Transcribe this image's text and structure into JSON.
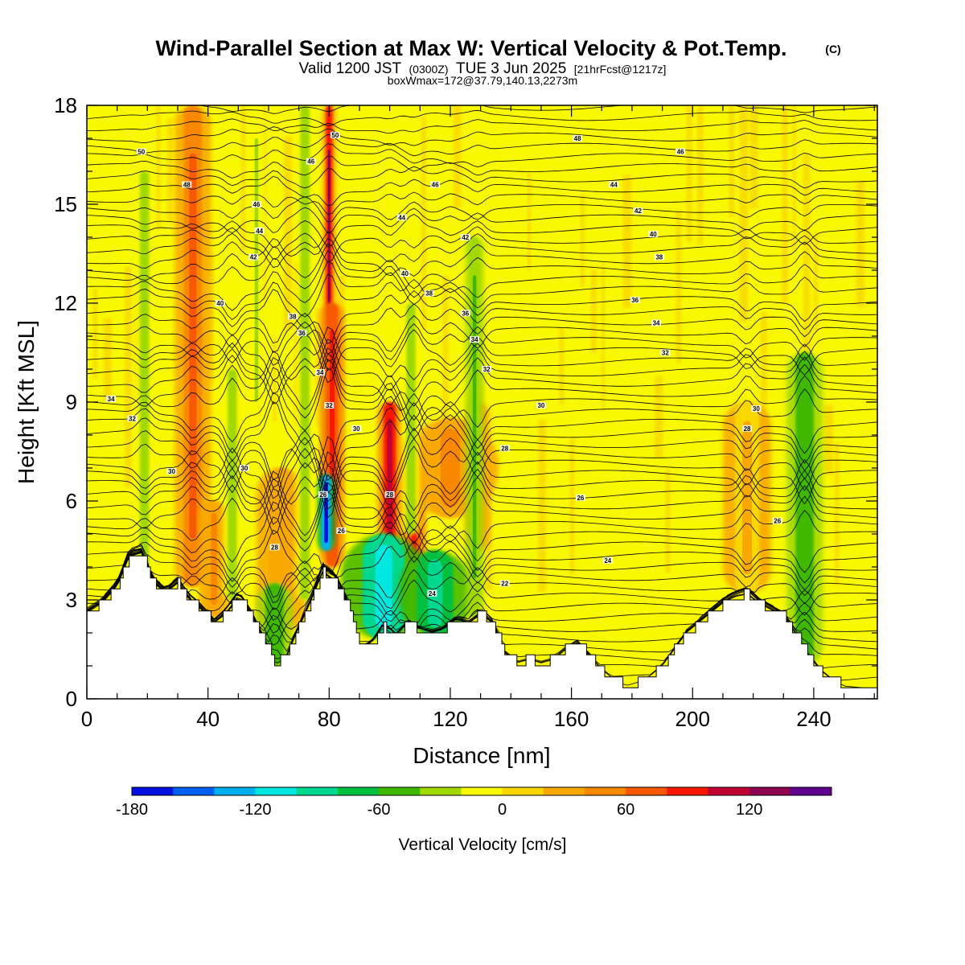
{
  "header": {
    "title": "Wind-Parallel Section at Max W: Vertical Velocity & Pot.Temp.",
    "title_mark": "(C)",
    "valid_prefix": "Valid 1200 JST",
    "valid_utc": "(0300Z)",
    "valid_date": "TUE 3 Jun 2025",
    "valid_fcst": "[21hrFcst@1217z]",
    "box_info": "boxWmax=172@37.79,140.13,2273m"
  },
  "chart_data": {
    "type": "heatmap",
    "xlabel": "Distance [nm]",
    "ylabel": "Height [Kft MSL]",
    "xlim": [
      0,
      261
    ],
    "ylim": [
      0,
      18
    ],
    "x_ticks": [
      0,
      40,
      80,
      120,
      160,
      200,
      240
    ],
    "y_ticks": [
      0,
      3,
      6,
      9,
      12,
      15,
      18
    ],
    "colorbar": {
      "label": "Vertical Velocity [cm/s]",
      "ticks": [
        -180,
        -120,
        -60,
        0,
        60,
        120
      ],
      "bins": [
        -180,
        -160,
        -140,
        -120,
        -100,
        -80,
        -60,
        -40,
        -20,
        0,
        20,
        40,
        60,
        80,
        100,
        120,
        140,
        160
      ],
      "colors": [
        "#0010e0",
        "#0060f0",
        "#00b0f0",
        "#00e8e0",
        "#00d890",
        "#00c040",
        "#40b800",
        "#a0d800",
        "#f8f800",
        "#f8d800",
        "#f8a800",
        "#f88800",
        "#f85800",
        "#f81800",
        "#c00030",
        "#900050",
        "#600090"
      ]
    },
    "terrain_kft": [
      [
        0,
        2.6
      ],
      [
        5,
        2.9
      ],
      [
        10,
        3.4
      ],
      [
        14,
        4.3
      ],
      [
        18,
        4.4
      ],
      [
        22,
        3.5
      ],
      [
        26,
        3.2
      ],
      [
        30,
        3.5
      ],
      [
        34,
        3.0
      ],
      [
        38,
        2.7
      ],
      [
        42,
        2.3
      ],
      [
        46,
        2.6
      ],
      [
        50,
        3.1
      ],
      [
        54,
        2.6
      ],
      [
        58,
        1.9
      ],
      [
        62,
        1.1
      ],
      [
        66,
        1.3
      ],
      [
        70,
        2.2
      ],
      [
        74,
        3.0
      ],
      [
        78,
        3.9
      ],
      [
        82,
        3.6
      ],
      [
        86,
        2.9
      ],
      [
        90,
        1.5
      ],
      [
        94,
        1.7
      ],
      [
        98,
        2.2
      ],
      [
        102,
        1.9
      ],
      [
        106,
        2.3
      ],
      [
        110,
        2.1
      ],
      [
        114,
        2.0
      ],
      [
        118,
        2.1
      ],
      [
        122,
        2.4
      ],
      [
        126,
        2.3
      ],
      [
        130,
        2.6
      ],
      [
        134,
        2.3
      ],
      [
        138,
        1.4
      ],
      [
        142,
        1.1
      ],
      [
        146,
        1.2
      ],
      [
        150,
        1.1
      ],
      [
        154,
        1.2
      ],
      [
        158,
        1.5
      ],
      [
        162,
        1.7
      ],
      [
        166,
        1.3
      ],
      [
        170,
        0.9
      ],
      [
        174,
        0.6
      ],
      [
        178,
        0.4
      ],
      [
        182,
        0.5
      ],
      [
        186,
        0.7
      ],
      [
        190,
        1.0
      ],
      [
        194,
        1.5
      ],
      [
        198,
        2.0
      ],
      [
        202,
        2.3
      ],
      [
        206,
        2.6
      ],
      [
        210,
        2.9
      ],
      [
        214,
        3.1
      ],
      [
        218,
        3.2
      ],
      [
        222,
        2.9
      ],
      [
        226,
        2.7
      ],
      [
        230,
        2.5
      ],
      [
        234,
        2.0
      ],
      [
        238,
        1.4
      ],
      [
        242,
        0.9
      ],
      [
        246,
        0.6
      ],
      [
        250,
        0.4
      ],
      [
        261,
        0.3
      ]
    ],
    "updrafts": [
      {
        "x": 35,
        "w": 6,
        "z0": 3.4,
        "z1": 18,
        "v": 60
      },
      {
        "x": 42,
        "w": 5,
        "z0": 2.5,
        "z1": 6,
        "v": 50
      },
      {
        "x": 64,
        "w": 8,
        "z0": 2.0,
        "z1": 7,
        "v": 30
      },
      {
        "x": 80,
        "w": 2,
        "z0": 4.5,
        "z1": 18,
        "v": 130
      },
      {
        "x": 81,
        "w": 4,
        "z0": 4.0,
        "z1": 12,
        "v": 90
      },
      {
        "x": 100,
        "w": 4,
        "z0": 4.0,
        "z1": 9,
        "v": 110
      },
      {
        "x": 108,
        "w": 4,
        "z0": 4.0,
        "z1": 8,
        "v": 95
      },
      {
        "x": 120,
        "w": 16,
        "z0": 5.5,
        "z1": 8.5,
        "v": 45
      },
      {
        "x": 129,
        "w": 4,
        "z0": 4.5,
        "z1": 9,
        "v": 40
      },
      {
        "x": 218,
        "w": 8,
        "z0": 3.2,
        "z1": 9,
        "v": 25
      }
    ],
    "downdrafts": [
      {
        "x": 79,
        "w": 3,
        "z0": 4.5,
        "z1": 6.8,
        "v": -175
      },
      {
        "x": 98,
        "w": 14,
        "z0": 1.8,
        "z1": 5.0,
        "v": -110
      },
      {
        "x": 115,
        "w": 12,
        "z0": 1.9,
        "z1": 4.5,
        "v": -95
      },
      {
        "x": 62,
        "w": 6,
        "z0": 1.0,
        "z1": 3.5,
        "v": -60
      },
      {
        "x": 237,
        "w": 6,
        "z0": 1.0,
        "z1": 10.5,
        "v": -55
      },
      {
        "x": 128,
        "w": 3,
        "z0": 2.5,
        "z1": 14,
        "v": -45
      },
      {
        "x": 107,
        "w": 3,
        "z0": 5,
        "z1": 12,
        "v": -40
      },
      {
        "x": 72,
        "w": 3,
        "z0": 3,
        "z1": 18,
        "v": -35
      },
      {
        "x": 48,
        "w": 3,
        "z0": 3,
        "z1": 10,
        "v": -35
      },
      {
        "x": 19,
        "w": 3,
        "z0": 4,
        "z1": 16,
        "v": -30
      },
      {
        "x": 56,
        "w": 3,
        "z0": 8,
        "z1": 18,
        "v": -25
      }
    ],
    "theta_labels": [
      {
        "x": 18,
        "z": 16.6,
        "text": "50"
      },
      {
        "x": 33,
        "z": 15.6,
        "text": "48"
      },
      {
        "x": 56,
        "z": 15.0,
        "text": "46"
      },
      {
        "x": 57,
        "z": 14.2,
        "text": "44"
      },
      {
        "x": 55,
        "z": 13.4,
        "text": "42"
      },
      {
        "x": 44,
        "z": 12.0,
        "text": "40"
      },
      {
        "x": 68,
        "z": 11.6,
        "text": "38"
      },
      {
        "x": 71,
        "z": 11.1,
        "text": "36"
      },
      {
        "x": 77,
        "z": 9.9,
        "text": "34"
      },
      {
        "x": 80,
        "z": 8.9,
        "text": "32"
      },
      {
        "x": 89,
        "z": 8.2,
        "text": "30"
      },
      {
        "x": 8,
        "z": 9.1,
        "text": "34"
      },
      {
        "x": 15,
        "z": 8.5,
        "text": "32"
      },
      {
        "x": 28,
        "z": 6.9,
        "text": "30"
      },
      {
        "x": 52,
        "z": 7.0,
        "text": "30"
      },
      {
        "x": 62,
        "z": 4.6,
        "text": "28"
      },
      {
        "x": 78,
        "z": 6.2,
        "text": "26"
      },
      {
        "x": 84,
        "z": 5.1,
        "text": "26"
      },
      {
        "x": 100,
        "z": 6.2,
        "text": "28"
      },
      {
        "x": 82,
        "z": 17.1,
        "text": "50"
      },
      {
        "x": 74,
        "z": 16.3,
        "text": "46"
      },
      {
        "x": 115,
        "z": 15.6,
        "text": "46"
      },
      {
        "x": 104,
        "z": 14.6,
        "text": "44"
      },
      {
        "x": 125,
        "z": 14.0,
        "text": "42"
      },
      {
        "x": 105,
        "z": 12.9,
        "text": "40"
      },
      {
        "x": 113,
        "z": 12.3,
        "text": "38"
      },
      {
        "x": 125,
        "z": 11.7,
        "text": "36"
      },
      {
        "x": 128,
        "z": 10.9,
        "text": "34"
      },
      {
        "x": 132,
        "z": 10.0,
        "text": "32"
      },
      {
        "x": 162,
        "z": 17.0,
        "text": "48"
      },
      {
        "x": 196,
        "z": 16.6,
        "text": "46"
      },
      {
        "x": 174,
        "z": 15.6,
        "text": "44"
      },
      {
        "x": 182,
        "z": 14.8,
        "text": "42"
      },
      {
        "x": 187,
        "z": 14.1,
        "text": "40"
      },
      {
        "x": 189,
        "z": 13.4,
        "text": "38"
      },
      {
        "x": 181,
        "z": 12.1,
        "text": "36"
      },
      {
        "x": 188,
        "z": 11.4,
        "text": "34"
      },
      {
        "x": 191,
        "z": 10.5,
        "text": "32"
      },
      {
        "x": 150,
        "z": 8.9,
        "text": "30"
      },
      {
        "x": 221,
        "z": 8.8,
        "text": "30"
      },
      {
        "x": 218,
        "z": 8.2,
        "text": "28"
      },
      {
        "x": 138,
        "z": 7.6,
        "text": "28"
      },
      {
        "x": 163,
        "z": 6.1,
        "text": "26"
      },
      {
        "x": 228,
        "z": 5.4,
        "text": "26"
      },
      {
        "x": 172,
        "z": 4.2,
        "text": "24"
      },
      {
        "x": 114,
        "z": 3.2,
        "text": "24"
      },
      {
        "x": 138,
        "z": 3.5,
        "text": "22"
      }
    ]
  }
}
